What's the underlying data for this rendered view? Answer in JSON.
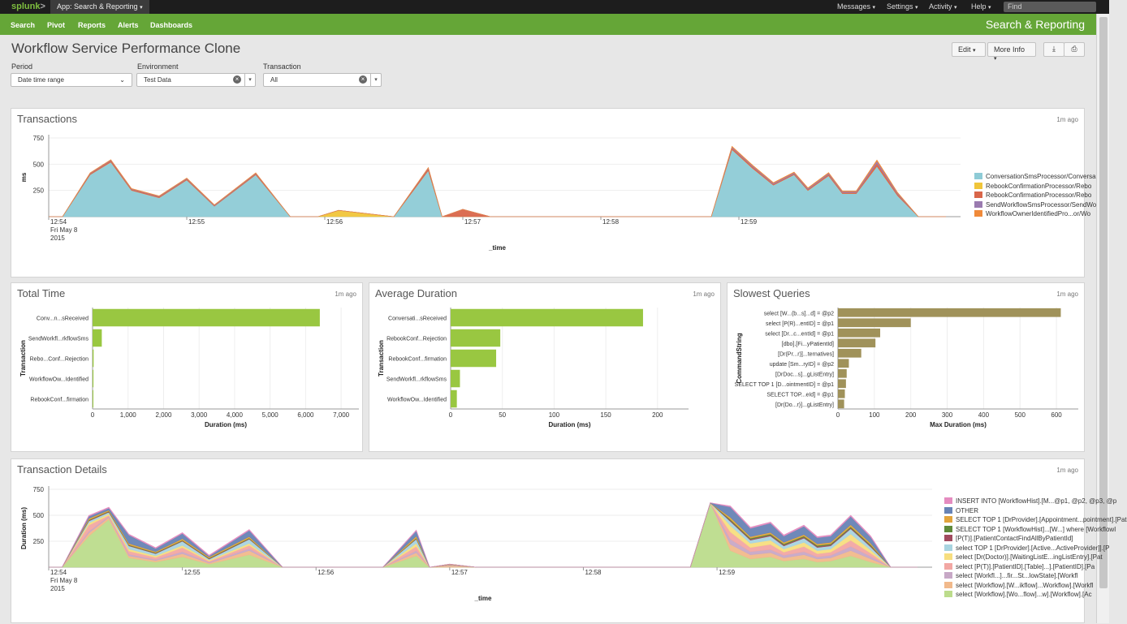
{
  "topbar": {
    "logo": "splunk",
    "logo_mark": ">",
    "app_menu": "App: Search & Reporting",
    "nav": [
      "Messages",
      "Settings",
      "Activity",
      "Help"
    ],
    "find_placeholder": "Find"
  },
  "appbar": {
    "nav": [
      "Search",
      "Pivot",
      "Reports",
      "Alerts",
      "Dashboards"
    ],
    "app_name": "Search & Reporting"
  },
  "dashboard": {
    "title": "Workflow Service Performance Clone",
    "edit_label": "Edit",
    "more_info_label": "More Info",
    "export_icon": "download-icon",
    "print_icon": "print-icon"
  },
  "filters": {
    "period": {
      "label": "Period",
      "value": "Date time range"
    },
    "environment": {
      "label": "Environment",
      "value": "Test Data"
    },
    "transaction": {
      "label": "Transaction",
      "value": "All"
    }
  },
  "panels": {
    "transactions": {
      "title": "Transactions",
      "ago": "1m ago"
    },
    "total_time": {
      "title": "Total Time",
      "ago": "1m ago"
    },
    "avg_duration": {
      "title": "Average Duration",
      "ago": "1m ago"
    },
    "slowest": {
      "title": "Slowest Queries",
      "ago": "1m ago"
    },
    "details": {
      "title": "Transaction Details",
      "ago": "1m ago"
    }
  },
  "chart_data": [
    {
      "id": "transactions",
      "type": "area",
      "xlabel": "_time",
      "ylabel": "ms",
      "ylim": [
        0,
        750
      ],
      "yticks": [
        250,
        500,
        750
      ],
      "xticks": [
        "12:54",
        "12:55",
        "12:56",
        "12:57",
        "12:58",
        "12:59"
      ],
      "xsub": [
        "Fri May 8",
        "2015"
      ],
      "x": [
        0,
        0.1,
        0.3,
        0.45,
        0.6,
        0.8,
        1,
        1.2,
        1.5,
        1.75,
        1.95,
        2.1,
        2.5,
        2.75,
        2.85,
        3.0,
        3.2,
        3.4,
        4.8,
        4.95,
        5.1,
        5.25,
        5.4,
        5.5,
        5.65,
        5.75,
        5.85,
        6.0,
        6.15,
        6.3,
        6.45,
        6.5
      ],
      "series": [
        {
          "name": "ConversationSmsProcessor/Conversa",
          "color": "#8ecbd6",
          "values": [
            0,
            0,
            400,
            520,
            250,
            180,
            350,
            100,
            400,
            0,
            0,
            0,
            0,
            440,
            0,
            0,
            0,
            0,
            0,
            640,
            460,
            300,
            400,
            250,
            390,
            220,
            220,
            480,
            200,
            0,
            0,
            0
          ]
        },
        {
          "name": "RebookConfirmationProcessor/Rebo",
          "color": "#f0c53a",
          "values": [
            0,
            0,
            0,
            0,
            0,
            0,
            0,
            0,
            0,
            0,
            0,
            60,
            0,
            0,
            0,
            0,
            0,
            0,
            0,
            0,
            0,
            0,
            0,
            0,
            0,
            0,
            0,
            0,
            0,
            0,
            0,
            0
          ]
        },
        {
          "name": "RebookConfirmationProcessor/Rebo",
          "color": "#d9664a",
          "values": [
            0,
            0,
            10,
            15,
            10,
            10,
            10,
            5,
            10,
            0,
            0,
            0,
            0,
            20,
            0,
            70,
            0,
            0,
            0,
            15,
            15,
            10,
            10,
            10,
            15,
            10,
            10,
            30,
            15,
            0,
            0,
            0
          ]
        },
        {
          "name": "SendWorkflowSmsProcessor/SendWo",
          "color": "#9a7bb0",
          "values": [
            0,
            0,
            5,
            5,
            5,
            5,
            5,
            5,
            5,
            0,
            0,
            0,
            0,
            5,
            0,
            0,
            0,
            0,
            0,
            10,
            10,
            10,
            10,
            10,
            10,
            10,
            10,
            20,
            10,
            0,
            0,
            0
          ]
        },
        {
          "name": "WorkflowOwnerIdentifiedPro...or/Wo",
          "color": "#f08a3a",
          "values": [
            0,
            0,
            3,
            3,
            3,
            3,
            3,
            3,
            3,
            0,
            0,
            0,
            0,
            3,
            0,
            0,
            0,
            0,
            0,
            5,
            5,
            5,
            5,
            5,
            5,
            5,
            5,
            10,
            5,
            0,
            0,
            0
          ]
        }
      ]
    },
    {
      "id": "total_time",
      "type": "bar",
      "xlabel": "Duration (ms)",
      "ylabel": "Transaction",
      "xlim": [
        0,
        7500
      ],
      "xticks": [
        0,
        1000,
        2000,
        3000,
        4000,
        5000,
        6000,
        7000
      ],
      "xtick_labels": [
        "0",
        "1,000",
        "2,000",
        "3,000",
        "4,000",
        "5,000",
        "6,000",
        "7,000"
      ],
      "categories": [
        "Conv...n...sReceived",
        "SendWorkfl...rkflowSms",
        "Rebo...Conf...Rejection",
        "WorkflowOw...Identified",
        "RebookConf...firmation"
      ],
      "values": [
        6400,
        260,
        30,
        25,
        20
      ],
      "color": "#99c741"
    },
    {
      "id": "avg_duration",
      "type": "bar",
      "xlabel": "Duration (ms)",
      "ylabel": "Transaction",
      "xlim": [
        0,
        230
      ],
      "xticks": [
        0,
        50,
        100,
        150,
        200
      ],
      "xtick_labels": [
        "0",
        "50",
        "100",
        "150",
        "200"
      ],
      "categories": [
        "Conversati...sReceived",
        "RebookConf...Rejection",
        "RebookConf...firmation",
        "SendWorkfl...rkflowSms",
        "WorkflowOw...Identified"
      ],
      "values": [
        186,
        48,
        44,
        9,
        6
      ],
      "color": "#99c741"
    },
    {
      "id": "slowest",
      "type": "bar",
      "xlabel": "Max Duration (ms)",
      "ylabel": "CommandString",
      "xlim": [
        0,
        660
      ],
      "xticks": [
        0,
        100,
        200,
        300,
        400,
        500,
        600
      ],
      "xtick_labels": [
        "0",
        "100",
        "200",
        "300",
        "400",
        "500",
        "600"
      ],
      "categories": [
        "select [W...(b...s]...d] = @p2",
        "select [P(R)...entID] = @p1",
        "select [Dr...c...entId] = @p1",
        "[dbo].[Fi...yPatientId]",
        "[Dr(Pr...r)]...ternatives]",
        "update [Sm...ryID] = @p2",
        "[DrDoc...s]...gListEntry]",
        "SELECT TOP 1 [D...ointmentID] = @p1",
        "SELECT TOP...eId] = @p1",
        "[Dr(Do...r)]...gListEntry]"
      ],
      "values": [
        612,
        200,
        116,
        103,
        64,
        30,
        24,
        22,
        19,
        17
      ],
      "color": "#a0925a"
    },
    {
      "id": "details",
      "type": "area",
      "xlabel": "_time",
      "ylabel": "Duration (ms)",
      "ylim": [
        0,
        750
      ],
      "yticks": [
        250,
        500,
        750
      ],
      "xticks": [
        "12:54",
        "12:55",
        "12:56",
        "12:57",
        "12:58",
        "12:59"
      ],
      "xsub": [
        "Fri May 8",
        "2015"
      ],
      "x": [
        0,
        0.1,
        0.3,
        0.45,
        0.6,
        0.8,
        1,
        1.2,
        1.5,
        1.75,
        1.95,
        2.1,
        2.5,
        2.75,
        2.85,
        3.0,
        3.2,
        3.4,
        4.8,
        4.95,
        5.1,
        5.25,
        5.4,
        5.5,
        5.65,
        5.75,
        5.85,
        6.0,
        6.15,
        6.3,
        6.45,
        6.5
      ],
      "series": [
        {
          "name": "select [Workflow].[Wo...flow]...w].[Workflow].[Ac",
          "color": "#bcdc8c",
          "values": [
            0,
            0,
            300,
            460,
            90,
            50,
            100,
            30,
            120,
            0,
            0,
            0,
            0,
            110,
            0,
            0,
            0,
            0,
            0,
            620,
            160,
            80,
            100,
            60,
            80,
            50,
            60,
            110,
            50,
            0,
            0,
            0
          ]
        },
        {
          "name": "select [Workflow].[W...ikflow]...Workflow].[Workfl",
          "color": "#f1b98b",
          "values": [
            0,
            0,
            30,
            20,
            20,
            15,
            30,
            10,
            40,
            0,
            0,
            0,
            0,
            30,
            0,
            15,
            0,
            0,
            0,
            0,
            60,
            40,
            40,
            30,
            40,
            30,
            30,
            50,
            30,
            0,
            0,
            0
          ]
        },
        {
          "name": "select [Workfl...]...fir...St...lowState].[Workfl",
          "color": "#c7a8c6",
          "values": [
            0,
            0,
            15,
            10,
            15,
            10,
            20,
            8,
            20,
            0,
            0,
            0,
            0,
            20,
            0,
            10,
            0,
            0,
            0,
            0,
            50,
            30,
            30,
            25,
            30,
            20,
            25,
            40,
            25,
            0,
            0,
            0
          ]
        },
        {
          "name": "select [P(T)].[PatientID].[Table]...].[PatientID].[Pa",
          "color": "#f2a7a3",
          "values": [
            0,
            0,
            60,
            10,
            30,
            20,
            40,
            10,
            30,
            0,
            0,
            0,
            0,
            40,
            0,
            0,
            0,
            0,
            0,
            0,
            70,
            40,
            50,
            30,
            50,
            30,
            30,
            60,
            30,
            0,
            0,
            0
          ]
        },
        {
          "name": "select [Dr(Doctor)].[WaitingListE...ingListEntry].[Pat",
          "color": "#f7de7f",
          "values": [
            0,
            0,
            20,
            15,
            20,
            15,
            20,
            10,
            20,
            0,
            0,
            0,
            0,
            30,
            0,
            0,
            0,
            0,
            0,
            0,
            60,
            40,
            40,
            30,
            40,
            30,
            30,
            60,
            30,
            0,
            0,
            0
          ]
        },
        {
          "name": "select TOP 1 [DrProvider].[Active...ActiveProvider]].[P",
          "color": "#a8d4e0",
          "values": [
            0,
            0,
            20,
            15,
            30,
            20,
            40,
            10,
            40,
            0,
            0,
            0,
            0,
            40,
            0,
            0,
            0,
            0,
            0,
            0,
            40,
            30,
            40,
            30,
            40,
            30,
            30,
            50,
            30,
            0,
            0,
            0
          ]
        },
        {
          "name": "[P(T)].[PatientContactFindAllByPatientId]",
          "color": "#a14a5e",
          "values": [
            0,
            0,
            5,
            5,
            5,
            5,
            5,
            5,
            5,
            0,
            0,
            0,
            0,
            5,
            0,
            0,
            0,
            0,
            0,
            0,
            10,
            10,
            10,
            10,
            10,
            10,
            10,
            10,
            10,
            0,
            0,
            0
          ]
        },
        {
          "name": "SELECT TOP 1 [WorkflowHist]...[W...] where [WorkflowI",
          "color": "#5f8a3a",
          "values": [
            0,
            0,
            5,
            5,
            5,
            5,
            5,
            5,
            5,
            0,
            0,
            0,
            0,
            5,
            0,
            0,
            0,
            0,
            0,
            0,
            10,
            10,
            10,
            10,
            10,
            10,
            10,
            10,
            10,
            0,
            0,
            0
          ]
        },
        {
          "name": "SELECT TOP 1 [DrProvider].[Appointment...pointment].[Pat",
          "color": "#e2a43c",
          "values": [
            0,
            0,
            15,
            10,
            15,
            10,
            15,
            10,
            15,
            0,
            0,
            0,
            0,
            20,
            0,
            5,
            0,
            0,
            0,
            0,
            20,
            15,
            15,
            15,
            15,
            15,
            15,
            20,
            15,
            0,
            0,
            0
          ]
        },
        {
          "name": "OTHER",
          "color": "#6783b5",
          "values": [
            0,
            0,
            20,
            20,
            80,
            30,
            50,
            10,
            60,
            0,
            0,
            0,
            0,
            50,
            0,
            0,
            0,
            0,
            0,
            0,
            100,
            80,
            90,
            60,
            80,
            60,
            60,
            80,
            60,
            0,
            0,
            0
          ]
        },
        {
          "name": "INSERT INTO [WorkflowHist].[M...@p1, @p2, @p3, @p",
          "color": "#e58cc0",
          "values": [
            0,
            0,
            8,
            8,
            8,
            8,
            8,
            8,
            8,
            0,
            0,
            0,
            0,
            8,
            0,
            0,
            0,
            0,
            0,
            0,
            10,
            10,
            10,
            10,
            10,
            10,
            10,
            10,
            10,
            0,
            0,
            0
          ]
        }
      ]
    }
  ]
}
